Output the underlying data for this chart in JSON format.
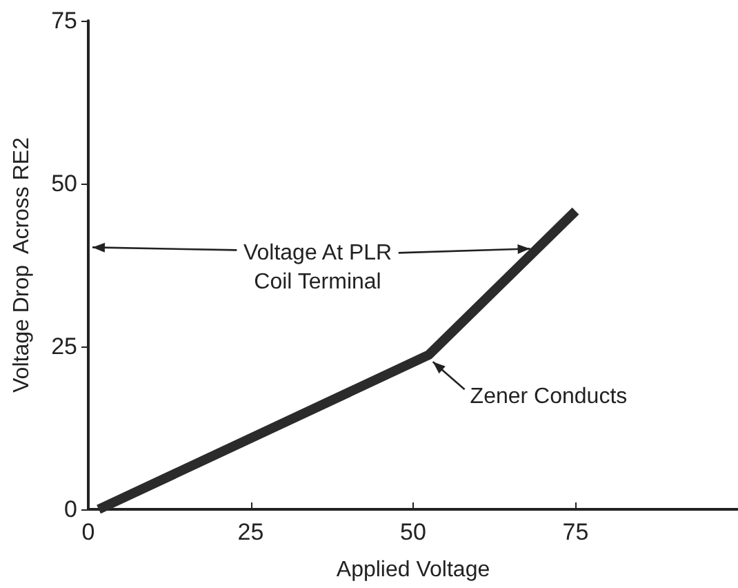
{
  "chart_data": {
    "type": "line",
    "xlabel": "Applied Voltage",
    "ylabel": "Voltage Drop  Across RE2",
    "x": [
      1.6,
      52.4,
      75
    ],
    "series": [
      {
        "color": "#2b2b2b",
        "values": [
          0,
          23.7,
          45.8
        ]
      }
    ],
    "xlim": [
      0,
      100
    ],
    "xticks": [
      0,
      25,
      50,
      75
    ],
    "ylim": [
      0,
      75
    ],
    "yticks": [
      0,
      25,
      50,
      75
    ],
    "grid": false,
    "marker": "none",
    "line_style": "solid",
    "annotations": [
      {
        "text": "Voltage At PLR\nCoil Terminal",
        "x": 68,
        "y": 40
      },
      {
        "text": "Zener Conducts",
        "x": 52.4,
        "y": 23.7
      }
    ]
  }
}
